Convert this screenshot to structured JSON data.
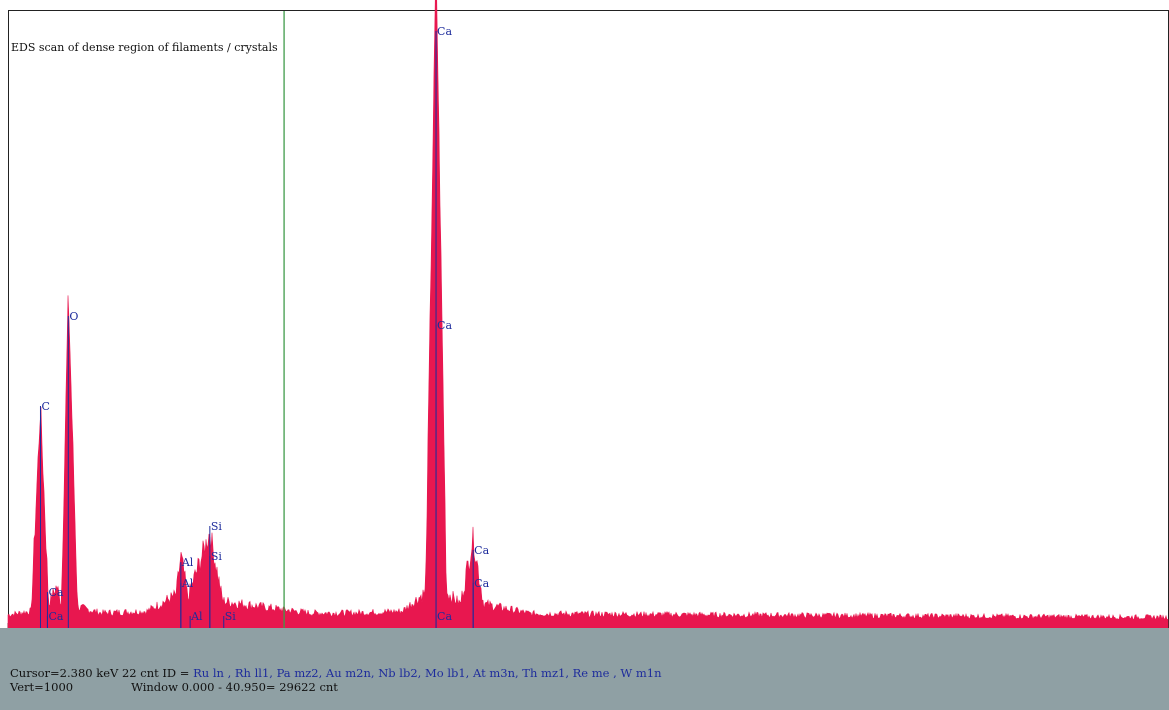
{
  "chart_data": {
    "type": "line",
    "title": "EDS scan of dense region of filaments / crystals",
    "xlabel": "",
    "ylabel": "",
    "x_range_keV": [
      0,
      10
    ],
    "y_range_cnt": [
      0,
      1000
    ],
    "x_ticks": [
      {
        "value": 0,
        "label": "0"
      },
      {
        "value": 1,
        "label": ""
      },
      {
        "value": 2,
        "label": ""
      },
      {
        "value": 3,
        "label": ""
      },
      {
        "value": 4,
        "label": ""
      },
      {
        "value": 5,
        "label": "5"
      },
      {
        "value": 6,
        "label": ""
      },
      {
        "value": 7,
        "label": ""
      },
      {
        "value": 8,
        "label": ""
      },
      {
        "value": 9,
        "label": ""
      }
    ],
    "cursor_keV": 2.38,
    "series": [
      {
        "color": "#e8174f",
        "spectrum": [
          [
            0.0,
            22
          ],
          [
            0.2,
            28
          ],
          [
            0.28,
            370
          ],
          [
            0.35,
            40
          ],
          [
            0.42,
            70
          ],
          [
            0.46,
            40
          ],
          [
            0.52,
            560
          ],
          [
            0.6,
            35
          ],
          [
            0.8,
            25
          ],
          [
            1.2,
            28
          ],
          [
            1.45,
            55
          ],
          [
            1.49,
            120
          ],
          [
            1.55,
            50
          ],
          [
            1.74,
            160
          ],
          [
            1.85,
            45
          ],
          [
            2.2,
            35
          ],
          [
            2.6,
            25
          ],
          [
            3.0,
            25
          ],
          [
            3.4,
            28
          ],
          [
            3.6,
            60
          ],
          [
            3.69,
            1120
          ],
          [
            3.78,
            60
          ],
          [
            3.9,
            40
          ],
          [
            4.01,
            150
          ],
          [
            4.1,
            40
          ],
          [
            4.5,
            24
          ],
          [
            6.0,
            22
          ],
          [
            8.0,
            20
          ],
          [
            10.0,
            18
          ]
        ]
      }
    ],
    "peak_labels": [
      {
        "element": "C",
        "x": 0.28,
        "y": 370
      },
      {
        "element": "O",
        "x": 0.52,
        "y": 520
      },
      {
        "element": "Ca",
        "x": 0.34,
        "y": 60
      },
      {
        "element": "Ca",
        "x": 0.34,
        "y": 20
      },
      {
        "element": "Al",
        "x": 1.49,
        "y": 110
      },
      {
        "element": "Al",
        "x": 1.49,
        "y": 75
      },
      {
        "element": "Al",
        "x": 1.57,
        "y": 20
      },
      {
        "element": "Si",
        "x": 1.74,
        "y": 170
      },
      {
        "element": "Si",
        "x": 1.74,
        "y": 120
      },
      {
        "element": "Si",
        "x": 1.86,
        "y": 20
      },
      {
        "element": "Ca",
        "x": 3.69,
        "y": 995
      },
      {
        "element": "Ca",
        "x": 3.69,
        "y": 505
      },
      {
        "element": "Ca",
        "x": 3.69,
        "y": 20
      },
      {
        "element": "Ca",
        "x": 4.01,
        "y": 130
      },
      {
        "element": "Ca",
        "x": 4.01,
        "y": 75
      }
    ]
  },
  "status": {
    "cursor_text": "Cursor=2.380 keV   22 cnt  ID = ",
    "id_list": "Ru ln , Rh ll1, Pa mz2, Au m2n, Nb lb2, Mo lb1, At m3n, Th mz1, Re me , W m1n",
    "vert_text": "Vert=1000",
    "window_text": "Window 0.000 - 40.950=   29622 cnt"
  },
  "colors": {
    "spectrum": "#e8174f",
    "cursor_line": "#3f9b4a",
    "status_bar": "#8fa0a4",
    "peak_label": "#1e2c9c"
  }
}
